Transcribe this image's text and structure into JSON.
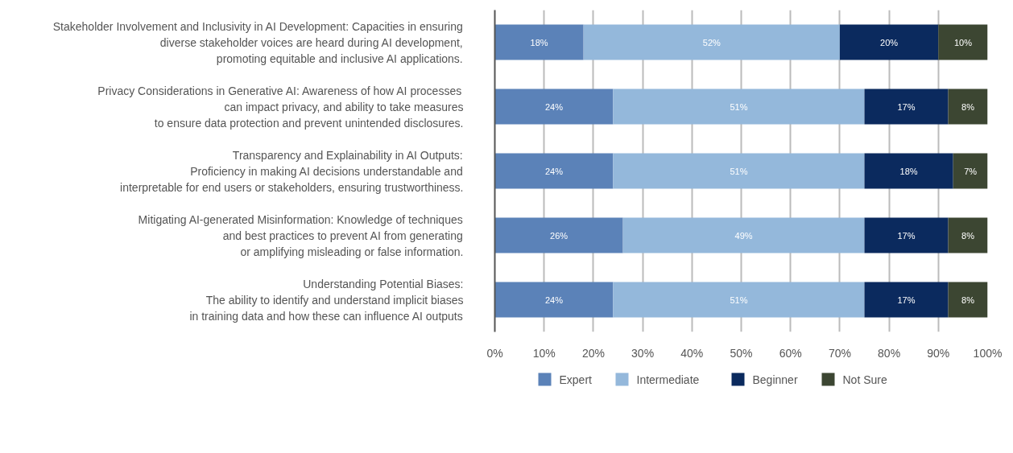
{
  "chart_data": {
    "type": "bar",
    "orientation": "horizontal",
    "stacked": true,
    "grid": "x",
    "legend": "bottom",
    "categories": [
      "Stakeholder Involvement and Inclusivity in AI Development: Capacities in ensuring\ndiverse stakeholder voices are heard during AI development,\npromoting equitable and inclusive AI applications.",
      "Privacy Considerations in Generative AI: Awareness of how AI processes\ncan impact privacy, and ability to take measures\nto ensure data protection and prevent unintended disclosures.",
      "Transparency and Explainability in AI Outputs:\nProficiency in making AI decisions understandable and\ninterpretable for end users or stakeholders, ensuring trustworthiness.",
      "Mitigating AI-generated Misinformation: Knowledge of techniques\nand best practices to prevent AI from generating\nor amplifying misleading or false information.",
      "Understanding Potential Biases:\nThe ability to identify and understand implicit biases\nin training data and how these can influence AI outputs"
    ],
    "series": [
      {
        "name": "Expert",
        "color": "#5b82b8",
        "values": [
          18,
          24,
          24,
          26,
          24
        ],
        "value_labels": [
          "18%",
          "24%",
          "24%",
          "26%",
          "24%"
        ]
      },
      {
        "name": "Intermediate",
        "color": "#94b8db",
        "values": [
          52,
          51,
          51,
          49,
          51
        ],
        "value_labels": [
          "52%",
          "51%",
          "51%",
          "49%",
          "51%"
        ]
      },
      {
        "name": "Beginner",
        "color": "#0b2a5e",
        "values": [
          20,
          17,
          18,
          17,
          17
        ],
        "value_labels": [
          "20%",
          "17%",
          "18%",
          "17%",
          "17%"
        ]
      },
      {
        "name": "Not Sure",
        "color": "#3c4632",
        "values": [
          10,
          8,
          7,
          8,
          8
        ],
        "value_labels": [
          "10%",
          "8%",
          "7%",
          "8%",
          "8%"
        ]
      }
    ],
    "xlim": [
      0,
      100
    ],
    "xticks": [
      {
        "value": 0,
        "label": "0%"
      },
      {
        "value": 10,
        "label": "10%"
      },
      {
        "value": 20,
        "label": "20%"
      },
      {
        "value": 30,
        "label": "30%"
      },
      {
        "value": 40,
        "label": "40%"
      },
      {
        "value": 50,
        "label": "50%"
      },
      {
        "value": 60,
        "label": "60%"
      },
      {
        "value": 70,
        "label": "70%"
      },
      {
        "value": 80,
        "label": "80%"
      },
      {
        "value": 90,
        "label": "90%"
      },
      {
        "value": 100,
        "label": "100%"
      }
    ]
  }
}
